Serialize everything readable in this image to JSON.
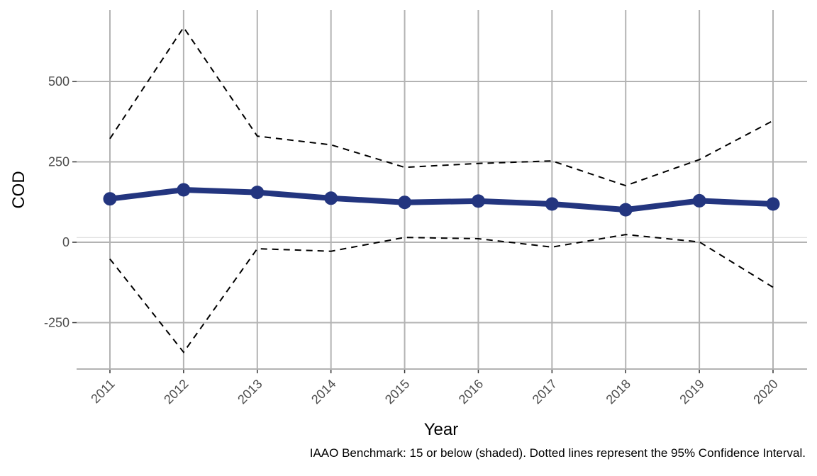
{
  "chart_data": {
    "type": "line",
    "title": "",
    "xlabel": "Year",
    "ylabel": "COD",
    "caption": "IAAO Benchmark: 15 or below (shaded). Dotted lines represent the 95% Confidence Interval.",
    "x": [
      "2011",
      "2012",
      "2013",
      "2014",
      "2015",
      "2016",
      "2017",
      "2018",
      "2019",
      "2020"
    ],
    "ylim": [
      -390,
      720
    ],
    "yticks": [
      -250,
      0,
      250,
      500
    ],
    "benchmark_max": 15,
    "series": [
      {
        "values": [
          135,
          163,
          155,
          137,
          124,
          128,
          119,
          101,
          129,
          119
        ],
        "color": "#23357f",
        "style": "solid"
      },
      {
        "values": [
          322,
          668,
          330,
          303,
          233,
          245,
          253,
          176,
          257,
          378
        ],
        "color": "#000000",
        "style": "dashed"
      },
      {
        "values": [
          -52,
          -342,
          -20,
          -28,
          15,
          11,
          -15,
          24,
          1,
          -140
        ],
        "color": "#000000",
        "style": "dashed"
      }
    ],
    "grid": true,
    "legend": "none"
  }
}
